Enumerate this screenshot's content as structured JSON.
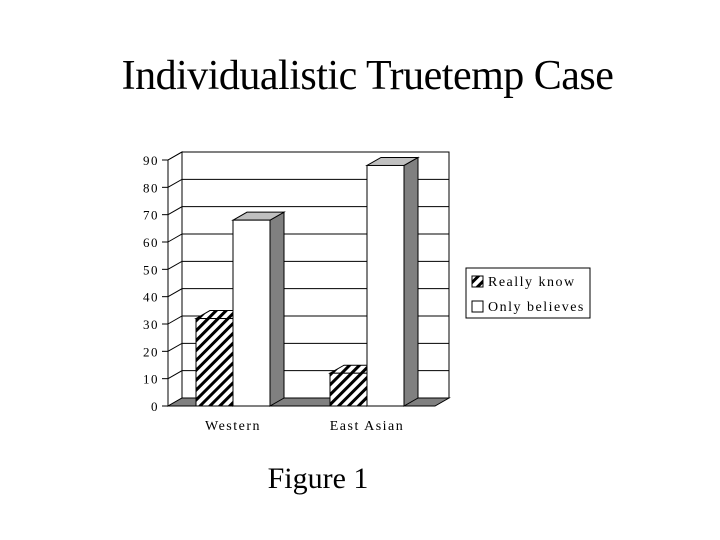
{
  "title": "Individualistic Truetemp Case",
  "caption": "Figure 1",
  "chart_data": {
    "type": "bar",
    "style": "3d-clustered",
    "categories": [
      "Western",
      "East Asian"
    ],
    "series": [
      {
        "name": "Really know",
        "values": [
          32,
          12
        ],
        "fill": "diagonal-hatch"
      },
      {
        "name": "Only believes",
        "values": [
          68,
          88
        ],
        "fill": "#ffffff"
      }
    ],
    "ylim": [
      0,
      90
    ],
    "yticks": [
      0,
      10,
      20,
      30,
      40,
      50,
      60,
      70,
      80,
      90
    ],
    "grid": true,
    "legend": "right",
    "colors": {
      "wall": "#ffffff",
      "floor": "#808080",
      "side": "#808080",
      "top": "#c0c0c0"
    }
  }
}
